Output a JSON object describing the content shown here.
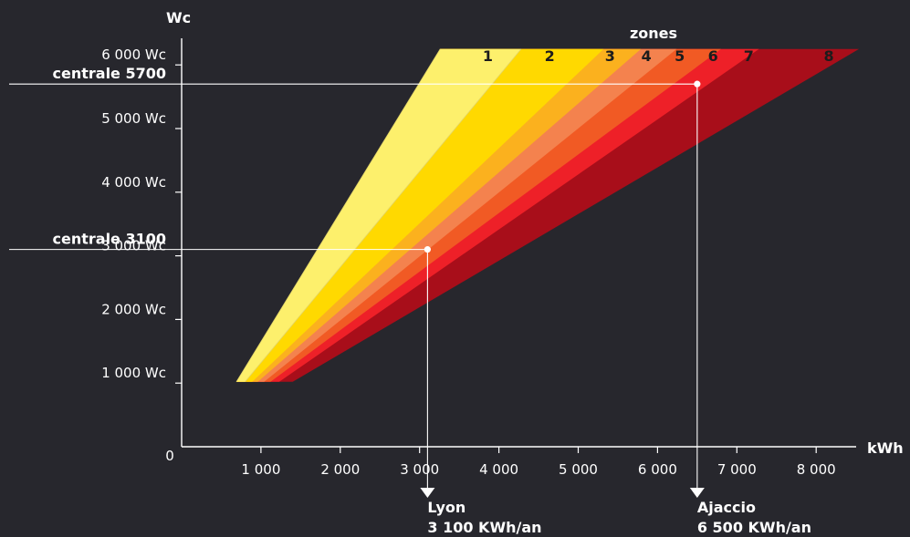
{
  "chart_data": {
    "type": "area",
    "title": "",
    "xlabel": "kWh",
    "ylabel": "Wc",
    "xlim": [
      -1000,
      9000
    ],
    "ylim": [
      0,
      6300
    ],
    "origin_label": "0",
    "x_ticks": [
      {
        "value": 1000,
        "label": "1 000"
      },
      {
        "value": 2000,
        "label": "2 000"
      },
      {
        "value": 3000,
        "label": "3 000"
      },
      {
        "value": 4000,
        "label": "4 000"
      },
      {
        "value": 5000,
        "label": "5 000"
      },
      {
        "value": 6000,
        "label": "6 000"
      },
      {
        "value": 7000,
        "label": "7 000"
      },
      {
        "value": 8000,
        "label": "8 000"
      }
    ],
    "y_ticks": [
      {
        "value": 1000,
        "label": "1 000 Wc"
      },
      {
        "value": 2000,
        "label": "2 000 Wc"
      },
      {
        "value": 3000,
        "label": "3 000 Wc"
      },
      {
        "value": 4000,
        "label": "4 000 Wc"
      },
      {
        "value": 5000,
        "label": "5 000 Wc"
      },
      {
        "value": 6000,
        "label": "6 000 Wc"
      }
    ],
    "legend_title": "zones",
    "zones": [
      {
        "name": "1",
        "color": "#fdf5a3",
        "boundary": [
          [
            690,
            1020
          ],
          [
            3260,
            6250
          ]
        ]
      },
      {
        "name": "2",
        "color": "#fdf06c",
        "boundary": [
          [
            800,
            1020
          ],
          [
            4280,
            6250
          ]
        ]
      },
      {
        "name": "3",
        "color": "#ffd900",
        "boundary": [
          [
            890,
            1020
          ],
          [
            5320,
            6250
          ]
        ]
      },
      {
        "name": "4",
        "color": "#fbb11e",
        "boundary": [
          [
            960,
            1020
          ],
          [
            5790,
            6250
          ]
        ]
      },
      {
        "name": "5",
        "color": "#f4824e",
        "boundary": [
          [
            1040,
            1020
          ],
          [
            6240,
            6250
          ]
        ]
      },
      {
        "name": "6",
        "color": "#f15a24",
        "boundary": [
          [
            1120,
            1020
          ],
          [
            6800,
            6250
          ]
        ]
      },
      {
        "name": "7",
        "color": "#ee2028",
        "boundary": [
          [
            1230,
            1020
          ],
          [
            7280,
            6250
          ]
        ]
      },
      {
        "name": "8",
        "color": "#a80e1a",
        "boundary": [
          [
            1400,
            1020
          ],
          [
            8540,
            6250
          ]
        ]
      }
    ],
    "zone_label_positions": [
      {
        "name": "1",
        "x": 3860,
        "y": 6060
      },
      {
        "name": "2",
        "x": 4640,
        "y": 6060
      },
      {
        "name": "3",
        "x": 5400,
        "y": 6060
      },
      {
        "name": "4",
        "x": 5860,
        "y": 6060
      },
      {
        "name": "5",
        "x": 6280,
        "y": 6060
      },
      {
        "name": "6",
        "x": 6700,
        "y": 6060
      },
      {
        "name": "7",
        "x": 7150,
        "y": 6060
      },
      {
        "name": "8",
        "x": 8160,
        "y": 6060
      }
    ],
    "annotations": [
      {
        "y_label": "centrale 5700",
        "wc": 5700,
        "kwh": 6500,
        "x_label_line1": "Ajaccio",
        "x_label_line2": "6 500 KWh/an"
      },
      {
        "y_label": "centrale 3100",
        "wc": 3100,
        "kwh": 3100,
        "x_label_line1": "Lyon",
        "x_label_line2": "3 100 KWh/an"
      }
    ],
    "grid": false,
    "legend_position": "top"
  }
}
